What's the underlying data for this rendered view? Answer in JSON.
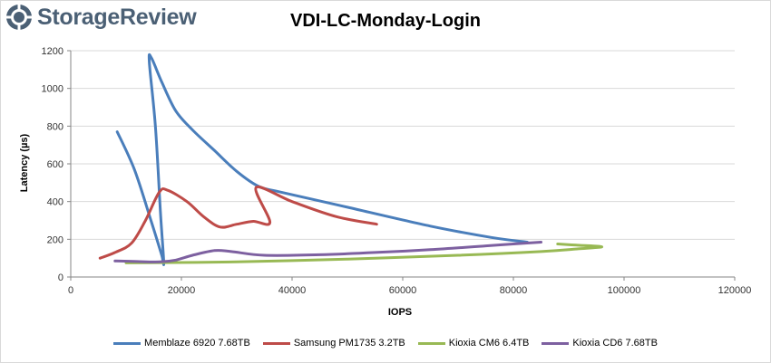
{
  "header": {
    "brand": "StorageReview",
    "brand_color": "#4b6075",
    "logo_icon": "storagereview-gear-icon"
  },
  "chart_data": {
    "type": "line",
    "title": "VDI-LC-Monday-Login",
    "xlabel": "IOPS",
    "ylabel": "Latency (µs)",
    "xlim": [
      0,
      120000
    ],
    "ylim": [
      0,
      1200
    ],
    "xticks": [
      0,
      20000,
      40000,
      60000,
      80000,
      100000,
      120000
    ],
    "yticks": [
      0,
      200,
      400,
      600,
      800,
      1000,
      1200
    ],
    "grid": "horizontal",
    "legend_position": "bottom",
    "series": [
      {
        "name": "Memblaze 6920 7.68TB",
        "color": "#4a7ebb",
        "points": [
          [
            8400,
            770
          ],
          [
            11500,
            570
          ],
          [
            14500,
            300
          ],
          [
            16400,
            120
          ],
          [
            16800,
            80
          ],
          [
            16200,
            350
          ],
          [
            15300,
            800
          ],
          [
            14200,
            1140
          ],
          [
            14600,
            1160
          ],
          [
            16500,
            1030
          ],
          [
            19000,
            880
          ],
          [
            22000,
            780
          ],
          [
            26000,
            670
          ],
          [
            30000,
            560
          ],
          [
            34000,
            480
          ],
          [
            38000,
            450
          ],
          [
            50000,
            370
          ],
          [
            65000,
            270
          ],
          [
            76000,
            210
          ],
          [
            82500,
            185
          ]
        ]
      },
      {
        "name": "Samsung PM1735 3.2TB",
        "color": "#be4b48",
        "points": [
          [
            5300,
            100
          ],
          [
            8000,
            130
          ],
          [
            11000,
            180
          ],
          [
            13500,
            300
          ],
          [
            16000,
            450
          ],
          [
            17500,
            460
          ],
          [
            21000,
            400
          ],
          [
            24000,
            320
          ],
          [
            27000,
            265
          ],
          [
            30000,
            280
          ],
          [
            33000,
            295
          ],
          [
            36000,
            290
          ],
          [
            33500,
            475
          ],
          [
            40000,
            400
          ],
          [
            48000,
            320
          ],
          [
            55300,
            280
          ]
        ]
      },
      {
        "name": "Kioxia CM6 6.4TB",
        "color": "#98b954",
        "points": [
          [
            10000,
            75
          ],
          [
            30000,
            80
          ],
          [
            50000,
            95
          ],
          [
            70000,
            115
          ],
          [
            85000,
            135
          ],
          [
            92000,
            150
          ],
          [
            96000,
            160
          ],
          [
            92000,
            168
          ],
          [
            88000,
            175
          ]
        ]
      },
      {
        "name": "Kioxia CD6 7.68TB",
        "color": "#7d60a0",
        "points": [
          [
            8000,
            85
          ],
          [
            12000,
            82
          ],
          [
            16000,
            80
          ],
          [
            19000,
            90
          ],
          [
            22000,
            115
          ],
          [
            26000,
            140
          ],
          [
            29000,
            135
          ],
          [
            35000,
            115
          ],
          [
            45000,
            118
          ],
          [
            55000,
            130
          ],
          [
            65000,
            145
          ],
          [
            75000,
            165
          ],
          [
            80000,
            175
          ],
          [
            85000,
            185
          ]
        ]
      }
    ]
  }
}
